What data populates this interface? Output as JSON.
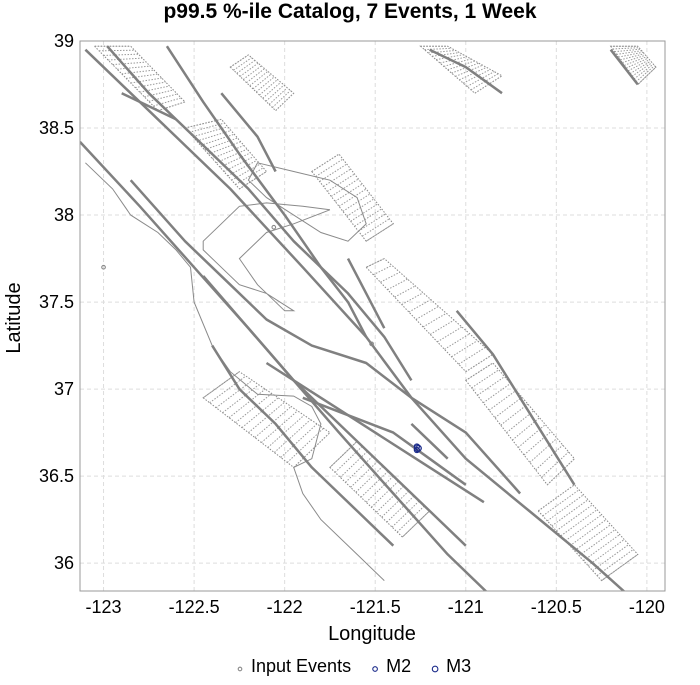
{
  "chart_data": {
    "type": "scatter",
    "title": "p99.5 %-ile Catalog, 7 Events, 1 Week",
    "xlabel": "Longitude",
    "ylabel": "Latitude",
    "xlim": [
      -123.13,
      -119.9
    ],
    "ylim": [
      35.84,
      39.0
    ],
    "grid": true,
    "x_ticks": [
      -123,
      -122.5,
      -122,
      -121.5,
      -121,
      -120.5,
      -120
    ],
    "x_tick_labels": [
      "-123",
      "-122.5",
      "-122",
      "-121.5",
      "-121",
      "-120.5",
      "-120"
    ],
    "y_ticks": [
      36,
      36.5,
      37,
      37.5,
      38,
      38.5,
      39
    ],
    "y_tick_labels": [
      "36",
      "36.5",
      "37",
      "37.5",
      "38",
      "38.5",
      "39"
    ],
    "legend_position": "bottom",
    "series": [
      {
        "name": "Input Events",
        "color": "#888888",
        "x": [
          -123.0,
          -122.06,
          -121.52
        ],
        "y": [
          37.7,
          37.93,
          37.26
        ]
      },
      {
        "name": "M2",
        "color": "#1a2a8a",
        "x": [
          -121.27,
          -121.26,
          -121.27
        ],
        "y": [
          36.67,
          36.66,
          36.65
        ]
      },
      {
        "name": "M3",
        "color": "#1a2a8a",
        "x": [
          -121.265
        ],
        "y": [
          36.66
        ]
      }
    ],
    "fault_traces": [
      [
        [
          -123.1,
          38.95
        ],
        [
          -122.7,
          38.55
        ],
        [
          -122.3,
          38.15
        ],
        [
          -121.9,
          37.7
        ],
        [
          -121.55,
          37.3
        ],
        [
          -121.3,
          36.95
        ],
        [
          -121.0,
          36.6
        ],
        [
          -120.65,
          36.3
        ],
        [
          -120.3,
          36.0
        ],
        [
          -120.0,
          35.72
        ]
      ],
      [
        [
          -123.13,
          38.42
        ],
        [
          -122.8,
          38.05
        ],
        [
          -122.5,
          37.7
        ],
        [
          -122.2,
          37.35
        ],
        [
          -121.95,
          37.05
        ],
        [
          -121.7,
          36.75
        ],
        [
          -121.4,
          36.4
        ],
        [
          -121.1,
          36.05
        ],
        [
          -120.85,
          35.8
        ]
      ],
      [
        [
          -122.98,
          38.97
        ],
        [
          -122.75,
          38.7
        ],
        [
          -122.45,
          38.4
        ],
        [
          -122.2,
          38.15
        ],
        [
          -121.95,
          37.85
        ],
        [
          -121.65,
          37.55
        ],
        [
          -121.45,
          37.3
        ],
        [
          -121.3,
          37.05
        ]
      ],
      [
        [
          -122.65,
          38.97
        ],
        [
          -122.45,
          38.65
        ],
        [
          -122.25,
          38.35
        ],
        [
          -122.0,
          38.0
        ],
        [
          -121.8,
          37.7
        ],
        [
          -121.65,
          37.5
        ],
        [
          -121.55,
          37.3
        ]
      ],
      [
        [
          -122.85,
          38.2
        ],
        [
          -122.55,
          37.85
        ],
        [
          -122.3,
          37.6
        ],
        [
          -122.1,
          37.4
        ],
        [
          -121.85,
          37.25
        ],
        [
          -121.55,
          37.15
        ],
        [
          -121.3,
          36.95
        ],
        [
          -121.0,
          36.75
        ],
        [
          -120.7,
          36.4
        ]
      ],
      [
        [
          -122.45,
          37.65
        ],
        [
          -122.2,
          37.35
        ],
        [
          -121.95,
          37.05
        ],
        [
          -121.7,
          36.8
        ],
        [
          -121.45,
          36.55
        ],
        [
          -121.2,
          36.3
        ],
        [
          -121.0,
          36.1
        ]
      ],
      [
        [
          -122.1,
          37.15
        ],
        [
          -121.8,
          36.95
        ],
        [
          -121.5,
          36.75
        ],
        [
          -121.2,
          36.55
        ],
        [
          -120.9,
          36.35
        ]
      ],
      [
        [
          -121.9,
          36.95
        ],
        [
          -121.65,
          36.85
        ],
        [
          -121.4,
          36.75
        ],
        [
          -121.2,
          36.6
        ],
        [
          -121.0,
          36.45
        ]
      ],
      [
        [
          -122.35,
          38.7
        ],
        [
          -122.15,
          38.45
        ],
        [
          -122.05,
          38.25
        ]
      ],
      [
        [
          -121.05,
          37.45
        ],
        [
          -120.85,
          37.2
        ],
        [
          -120.7,
          36.95
        ],
        [
          -120.55,
          36.7
        ],
        [
          -120.4,
          36.45
        ]
      ],
      [
        [
          -121.3,
          36.8
        ],
        [
          -121.2,
          36.7
        ],
        [
          -121.1,
          36.6
        ]
      ],
      [
        [
          -121.65,
          37.75
        ],
        [
          -121.55,
          37.55
        ],
        [
          -121.45,
          37.35
        ]
      ],
      [
        [
          -122.9,
          38.7
        ],
        [
          -122.6,
          38.55
        ]
      ],
      [
        [
          -122.4,
          37.25
        ],
        [
          -122.25,
          37.0
        ],
        [
          -122.05,
          36.8
        ],
        [
          -121.85,
          36.55
        ],
        [
          -121.6,
          36.3
        ],
        [
          -121.4,
          36.1
        ]
      ],
      [
        [
          -121.2,
          38.95
        ],
        [
          -121.0,
          38.85
        ],
        [
          -120.8,
          38.7
        ]
      ],
      [
        [
          -120.2,
          38.95
        ],
        [
          -120.05,
          38.75
        ]
      ]
    ],
    "fault_zones": [
      [
        [
          -123.05,
          38.97
        ],
        [
          -122.7,
          38.6
        ],
        [
          -122.55,
          38.65
        ],
        [
          -122.85,
          38.97
        ]
      ],
      [
        [
          -122.55,
          38.5
        ],
        [
          -122.25,
          38.15
        ],
        [
          -122.1,
          38.25
        ],
        [
          -122.35,
          38.55
        ]
      ],
      [
        [
          -121.85,
          38.25
        ],
        [
          -121.55,
          37.85
        ],
        [
          -121.4,
          37.95
        ],
        [
          -121.7,
          38.35
        ]
      ],
      [
        [
          -121.55,
          37.7
        ],
        [
          -121.0,
          37.1
        ],
        [
          -120.85,
          37.2
        ],
        [
          -121.45,
          37.75
        ]
      ],
      [
        [
          -121.0,
          37.05
        ],
        [
          -120.55,
          36.45
        ],
        [
          -120.4,
          36.6
        ],
        [
          -120.85,
          37.15
        ]
      ],
      [
        [
          -122.45,
          36.95
        ],
        [
          -121.95,
          36.55
        ],
        [
          -121.75,
          36.75
        ],
        [
          -122.25,
          37.1
        ]
      ],
      [
        [
          -121.75,
          36.55
        ],
        [
          -121.35,
          36.15
        ],
        [
          -121.2,
          36.3
        ],
        [
          -121.6,
          36.7
        ]
      ],
      [
        [
          -120.6,
          36.3
        ],
        [
          -120.25,
          35.9
        ],
        [
          -120.05,
          36.05
        ],
        [
          -120.4,
          36.45
        ]
      ],
      [
        [
          -121.25,
          38.97
        ],
        [
          -120.95,
          38.7
        ],
        [
          -120.8,
          38.8
        ],
        [
          -121.1,
          38.97
        ]
      ],
      [
        [
          -120.2,
          38.97
        ],
        [
          -120.05,
          38.75
        ],
        [
          -119.95,
          38.85
        ],
        [
          -120.05,
          38.97
        ]
      ],
      [
        [
          -122.3,
          38.85
        ],
        [
          -122.05,
          38.6
        ],
        [
          -121.95,
          38.7
        ],
        [
          -122.2,
          38.92
        ]
      ]
    ],
    "coastline": [
      [
        -123.1,
        38.3
      ],
      [
        -122.95,
        38.15
      ],
      [
        -122.85,
        38.0
      ],
      [
        -122.7,
        37.9
      ],
      [
        -122.6,
        37.8
      ],
      [
        -122.52,
        37.7
      ],
      [
        -122.5,
        37.5
      ],
      [
        -122.4,
        37.25
      ],
      [
        -122.3,
        37.1
      ],
      [
        -122.15,
        36.97
      ],
      [
        -121.95,
        36.96
      ],
      [
        -121.85,
        36.9
      ],
      [
        -121.8,
        36.8
      ],
      [
        -121.85,
        36.6
      ],
      [
        -121.95,
        36.55
      ],
      [
        -121.9,
        36.4
      ],
      [
        -121.8,
        36.25
      ],
      [
        -121.6,
        36.05
      ],
      [
        -121.45,
        35.9
      ]
    ],
    "bay_outline": [
      [
        -122.45,
        37.85
      ],
      [
        -122.35,
        37.95
      ],
      [
        -122.25,
        38.05
      ],
      [
        -122.1,
        38.07
      ],
      [
        -121.9,
        38.05
      ],
      [
        -121.75,
        38.03
      ],
      [
        -121.95,
        37.95
      ],
      [
        -122.1,
        37.9
      ],
      [
        -122.25,
        37.75
      ],
      [
        -122.15,
        37.6
      ],
      [
        -122.0,
        37.45
      ],
      [
        -121.95,
        37.45
      ],
      [
        -122.1,
        37.55
      ],
      [
        -122.25,
        37.6
      ],
      [
        -122.35,
        37.7
      ],
      [
        -122.45,
        37.8
      ]
    ],
    "delta_outline": [
      [
        -122.15,
        38.3
      ],
      [
        -121.95,
        38.25
      ],
      [
        -121.75,
        38.2
      ],
      [
        -121.6,
        38.1
      ],
      [
        -121.55,
        37.95
      ],
      [
        -121.65,
        37.85
      ],
      [
        -121.8,
        37.9
      ],
      [
        -121.95,
        38.0
      ],
      [
        -122.1,
        38.1
      ],
      [
        -122.2,
        38.2
      ]
    ]
  }
}
